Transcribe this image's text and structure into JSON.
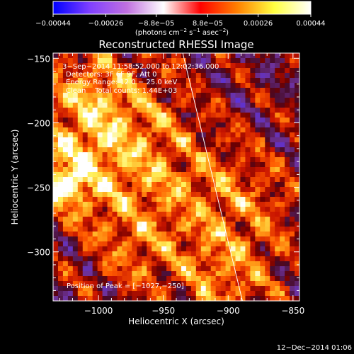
{
  "chart_data": {
    "type": "heatmap",
    "title": "Reconstructed RHESSI Image",
    "xlabel": "Heliocentric X (arcsec)",
    "ylabel": "Heliocentric Y (arcsec)",
    "xlim": [
      -1035,
      -845
    ],
    "ylim": [
      -338,
      -146
    ],
    "x_ticks": [
      -1000,
      -950,
      -900,
      -850
    ],
    "x_tick_labels": [
      "−1000",
      "−950",
      "−900",
      "−850"
    ],
    "y_ticks": [
      -150,
      -200,
      -250,
      -300
    ],
    "y_tick_labels": [
      "−150",
      "−200",
      "−250",
      "−300"
    ],
    "colorbar": {
      "ticks": [
        -0.00044,
        -0.00026,
        -8.8e-05,
        8.8e-05,
        0.00026,
        0.00044
      ],
      "tick_labels": [
        "−0.00044",
        "−0.00026",
        "−8.8e−05",
        "8.8e−05",
        "0.00026",
        "0.00044"
      ],
      "range": [
        -0.00044,
        0.00044
      ],
      "units_parts": [
        "(photons cm",
        "−2",
        " s",
        "−1",
        " asec",
        "−2",
        ")"
      ],
      "colors": [
        "#0000ff",
        "#8040ff",
        "#c070e0",
        "#ffffff",
        "#ff0000",
        "#ff8000",
        "#ffff40",
        "#ffffff"
      ]
    },
    "annotations": [
      "3−Sep−2014 11:58:52.000 to 12:02:36.000",
      "Detectors: 3F 6F 9F, Att 0",
      "Energy Range: 12.0 − 25.0 keV",
      "Clean    Total counts: 1.44E+03"
    ],
    "peak_label": "Position of Peak = [−1027,−250]",
    "peak_position": [
      -1027,
      -250
    ],
    "limb_line": [
      [
        -935,
        -146
      ],
      [
        -889,
        -338
      ]
    ],
    "grid": false,
    "timestamp": "12−Dec−2014 01:06"
  }
}
